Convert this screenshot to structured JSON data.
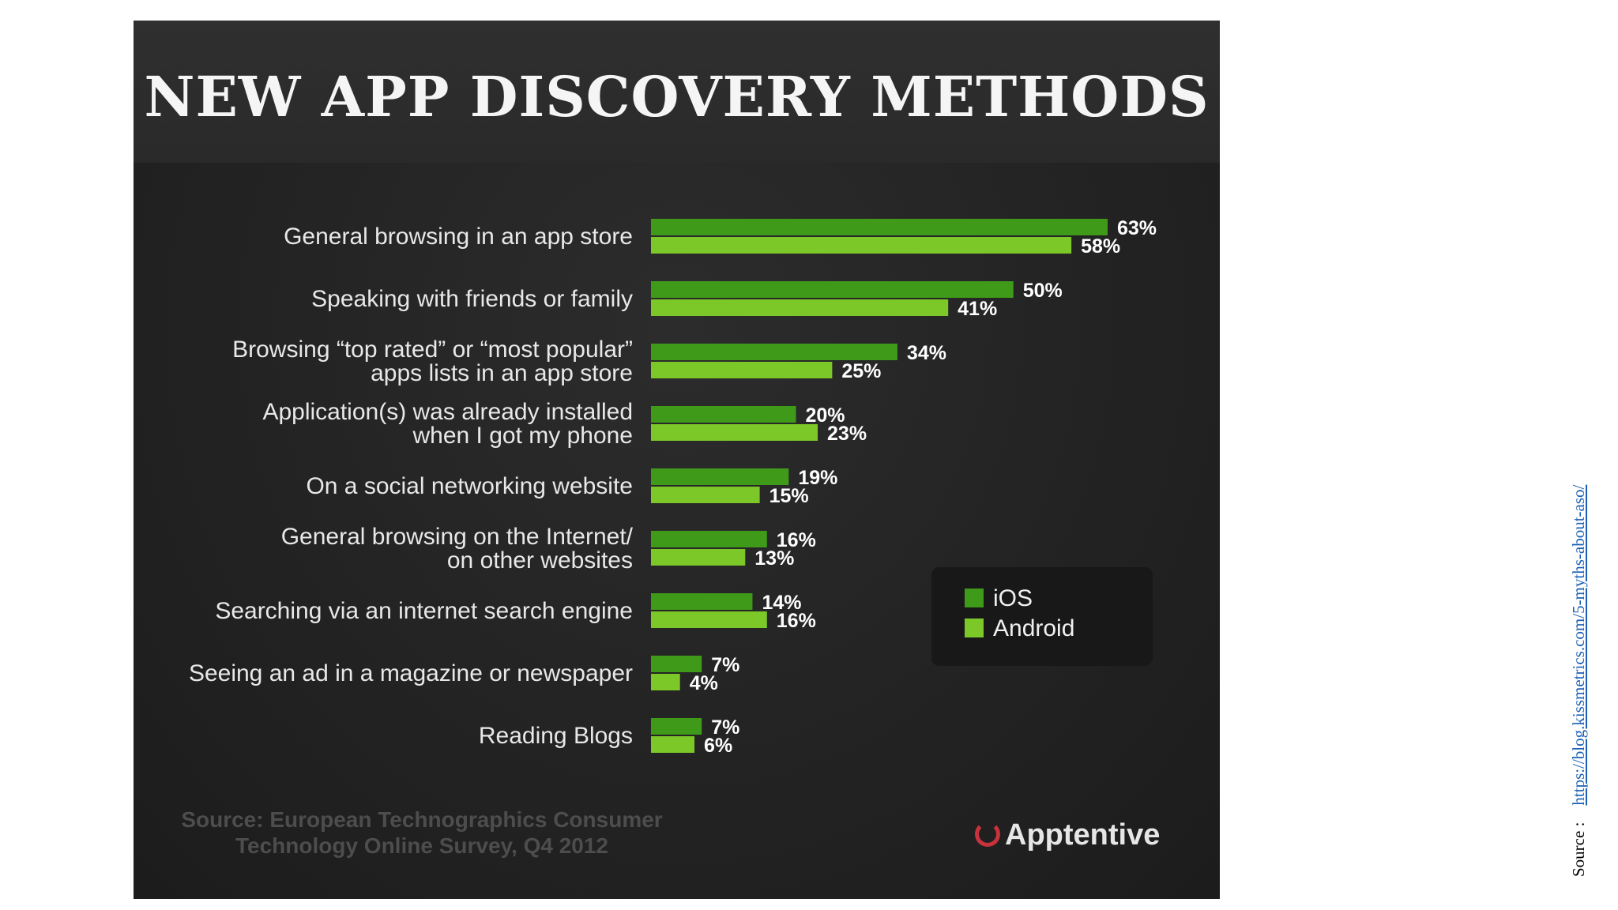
{
  "chart_data": {
    "type": "bar",
    "orientation": "horizontal",
    "title": "NEW APP DISCOVERY METHODS",
    "categories": [
      [
        "General browsing in an app store"
      ],
      [
        "Speaking with friends or family"
      ],
      [
        "Browsing “top rated” or “most popular”",
        "apps lists in an app store"
      ],
      [
        "Application(s) was already installed",
        "when I got my phone"
      ],
      [
        "On a social networking website"
      ],
      [
        "General browsing on the Internet/",
        "on other websites"
      ],
      [
        "Searching via an internet search engine"
      ],
      [
        "Seeing an ad in a magazine or newspaper"
      ],
      [
        "Reading Blogs"
      ]
    ],
    "series": [
      {
        "name": "iOS",
        "color": "#3f9a1a",
        "values": [
          63,
          50,
          34,
          20,
          19,
          16,
          14,
          7,
          7
        ],
        "labels": [
          "63%",
          "50%",
          "34%",
          "20%",
          "19%",
          "16%",
          "14%",
          "7%",
          "7%"
        ]
      },
      {
        "name": "Android",
        "color": "#7cc828",
        "values": [
          58,
          41,
          25,
          23,
          15,
          13,
          16,
          4,
          6
        ],
        "labels": [
          "58%",
          "41%",
          "25%",
          "23%",
          "15%",
          "13%",
          "16%",
          "4%",
          "6%"
        ]
      }
    ],
    "xlim": [
      0,
      63
    ],
    "value_format": "percent",
    "grid": false,
    "legend_position": "right"
  },
  "legend": {
    "ios": "iOS",
    "android": "Android"
  },
  "footer": {
    "source_line1": "Source: European Technographics Consumer",
    "source_line2": "Technology Online Survey, Q4 2012",
    "logo_text": "Apptentive"
  },
  "side_note": {
    "prefix": "Source :",
    "link_text": "https://blog.kissmetrics.com/5-myths-about-aso/"
  },
  "colors": {
    "background": "#232323",
    "ios": "#3f9a1a",
    "android": "#7cc828",
    "logo_accent": "#c8323c"
  }
}
